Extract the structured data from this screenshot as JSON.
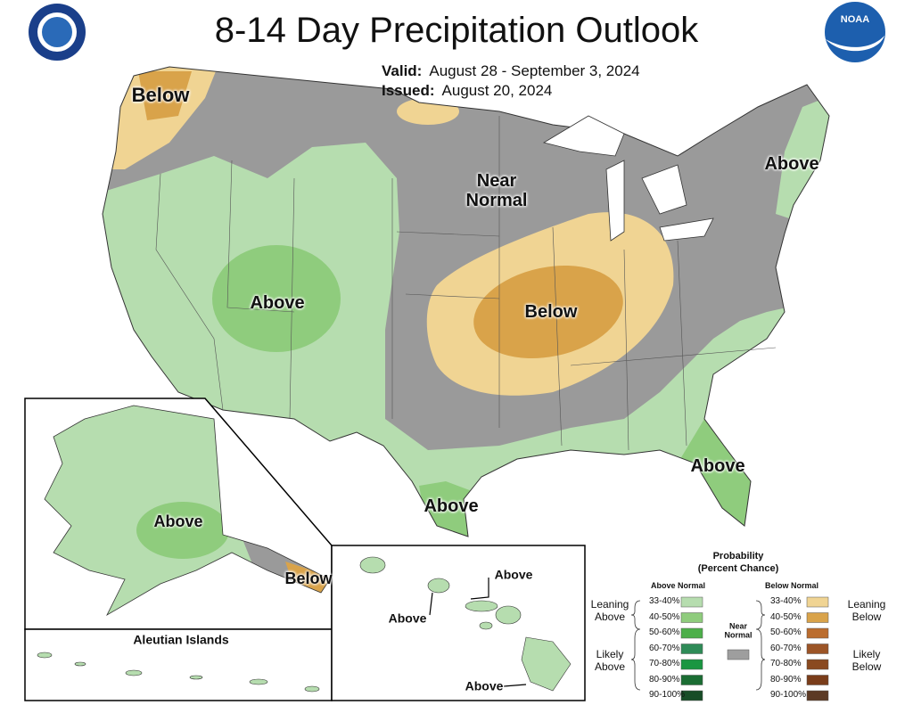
{
  "header": {
    "title": "8-14 Day Precipitation Outlook",
    "valid_label": "Valid:",
    "valid": "August 28 - September 3, 2024",
    "issued_label": "Issued:",
    "issued": "August 20, 2024",
    "logo_text": "NOAA"
  },
  "map_labels": [
    "Below",
    "Near Normal",
    "Above",
    "Above",
    "Below",
    "Above",
    "Above",
    "Above",
    "Below",
    "Aleutian Islands",
    "Above",
    "Above",
    "Above"
  ],
  "legend": {
    "title": "Probability",
    "subtitle": "(Percent Chance)",
    "above_heading": "Above Normal",
    "below_heading": "Below Normal",
    "near_label": "Near Normal",
    "near_color": "#9e9e9e",
    "leaning_above": "Leaning Above",
    "likely_above": "Likely Above",
    "leaning_below": "Leaning Below",
    "likely_below": "Likely Below",
    "above": [
      {
        "label": "33-40%",
        "color": "#b6ddaf"
      },
      {
        "label": "40-50%",
        "color": "#8fcc7d"
      },
      {
        "label": "50-60%",
        "color": "#4daf4a"
      },
      {
        "label": "60-70%",
        "color": "#2e8b57"
      },
      {
        "label": "70-80%",
        "color": "#1a9641"
      },
      {
        "label": "80-90%",
        "color": "#1b6d33"
      },
      {
        "label": "90-100%",
        "color": "#184d27"
      }
    ],
    "below": [
      {
        "label": "33-40%",
        "color": "#f0d493"
      },
      {
        "label": "40-50%",
        "color": "#d9a34a"
      },
      {
        "label": "50-60%",
        "color": "#bb6d2e"
      },
      {
        "label": "60-70%",
        "color": "#9c5527"
      },
      {
        "label": "70-80%",
        "color": "#8a4a20"
      },
      {
        "label": "80-90%",
        "color": "#7a3d1a"
      },
      {
        "label": "90-100%",
        "color": "#5c3a25"
      }
    ]
  }
}
